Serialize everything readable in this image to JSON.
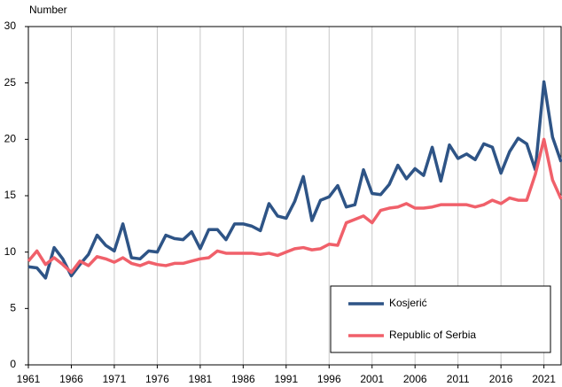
{
  "chart_data": {
    "type": "line",
    "y_label": "Number",
    "x": [
      1961,
      1962,
      1963,
      1964,
      1965,
      1966,
      1967,
      1968,
      1969,
      1970,
      1971,
      1972,
      1973,
      1974,
      1975,
      1976,
      1977,
      1978,
      1979,
      1980,
      1981,
      1982,
      1983,
      1984,
      1985,
      1986,
      1987,
      1988,
      1989,
      1990,
      1991,
      1992,
      1993,
      1994,
      1995,
      1996,
      1997,
      1998,
      1999,
      2000,
      2001,
      2002,
      2003,
      2004,
      2005,
      2006,
      2007,
      2008,
      2009,
      2010,
      2011,
      2012,
      2013,
      2014,
      2015,
      2016,
      2017,
      2018,
      2019,
      2020,
      2021,
      2022,
      2023
    ],
    "series": [
      {
        "name": "Kosjerić",
        "color": "#2e5486",
        "values": [
          8.7,
          8.6,
          7.7,
          10.4,
          9.4,
          7.9,
          8.9,
          9.8,
          11.5,
          10.6,
          10.1,
          12.5,
          9.5,
          9.4,
          10.1,
          10.0,
          11.5,
          11.2,
          11.1,
          11.8,
          10.3,
          12.0,
          12.0,
          11.1,
          12.5,
          12.5,
          12.3,
          11.9,
          14.3,
          13.2,
          13.0,
          14.5,
          16.7,
          12.8,
          14.6,
          14.9,
          15.9,
          14.0,
          14.2,
          17.3,
          15.2,
          15.1,
          16.0,
          17.7,
          16.5,
          17.4,
          16.8,
          19.3,
          16.3,
          19.5,
          18.3,
          18.7,
          18.2,
          19.6,
          19.3,
          17.0,
          18.9,
          20.1,
          19.6,
          17.3,
          25.1,
          20.2,
          18.0
        ]
      },
      {
        "name": "Republic of Serbia",
        "color": "#f0606a",
        "values": [
          9.2,
          10.1,
          8.9,
          9.5,
          8.9,
          8.2,
          9.2,
          8.8,
          9.6,
          9.4,
          9.1,
          9.5,
          9.0,
          8.8,
          9.1,
          8.9,
          8.8,
          9.0,
          9.0,
          9.2,
          9.4,
          9.5,
          10.1,
          9.9,
          9.9,
          9.9,
          9.9,
          9.8,
          9.9,
          9.7,
          10.0,
          10.3,
          10.4,
          10.2,
          10.3,
          10.7,
          10.6,
          12.6,
          12.9,
          13.2,
          12.6,
          13.7,
          13.9,
          14.0,
          14.3,
          13.9,
          13.9,
          14.0,
          14.2,
          14.2,
          14.2,
          14.2,
          14.0,
          14.2,
          14.6,
          14.3,
          14.8,
          14.6,
          14.6,
          16.9,
          20.0,
          16.4,
          14.7
        ]
      }
    ],
    "xlim": [
      1961,
      2023
    ],
    "xticks": [
      1961,
      1966,
      1971,
      1976,
      1981,
      1986,
      1991,
      1996,
      2001,
      2006,
      2011,
      2016,
      2021
    ],
    "ylim": [
      0,
      30
    ],
    "yticks": [
      0,
      5,
      10,
      15,
      20,
      25,
      30
    ],
    "grid": "x",
    "legend": "lower right"
  }
}
